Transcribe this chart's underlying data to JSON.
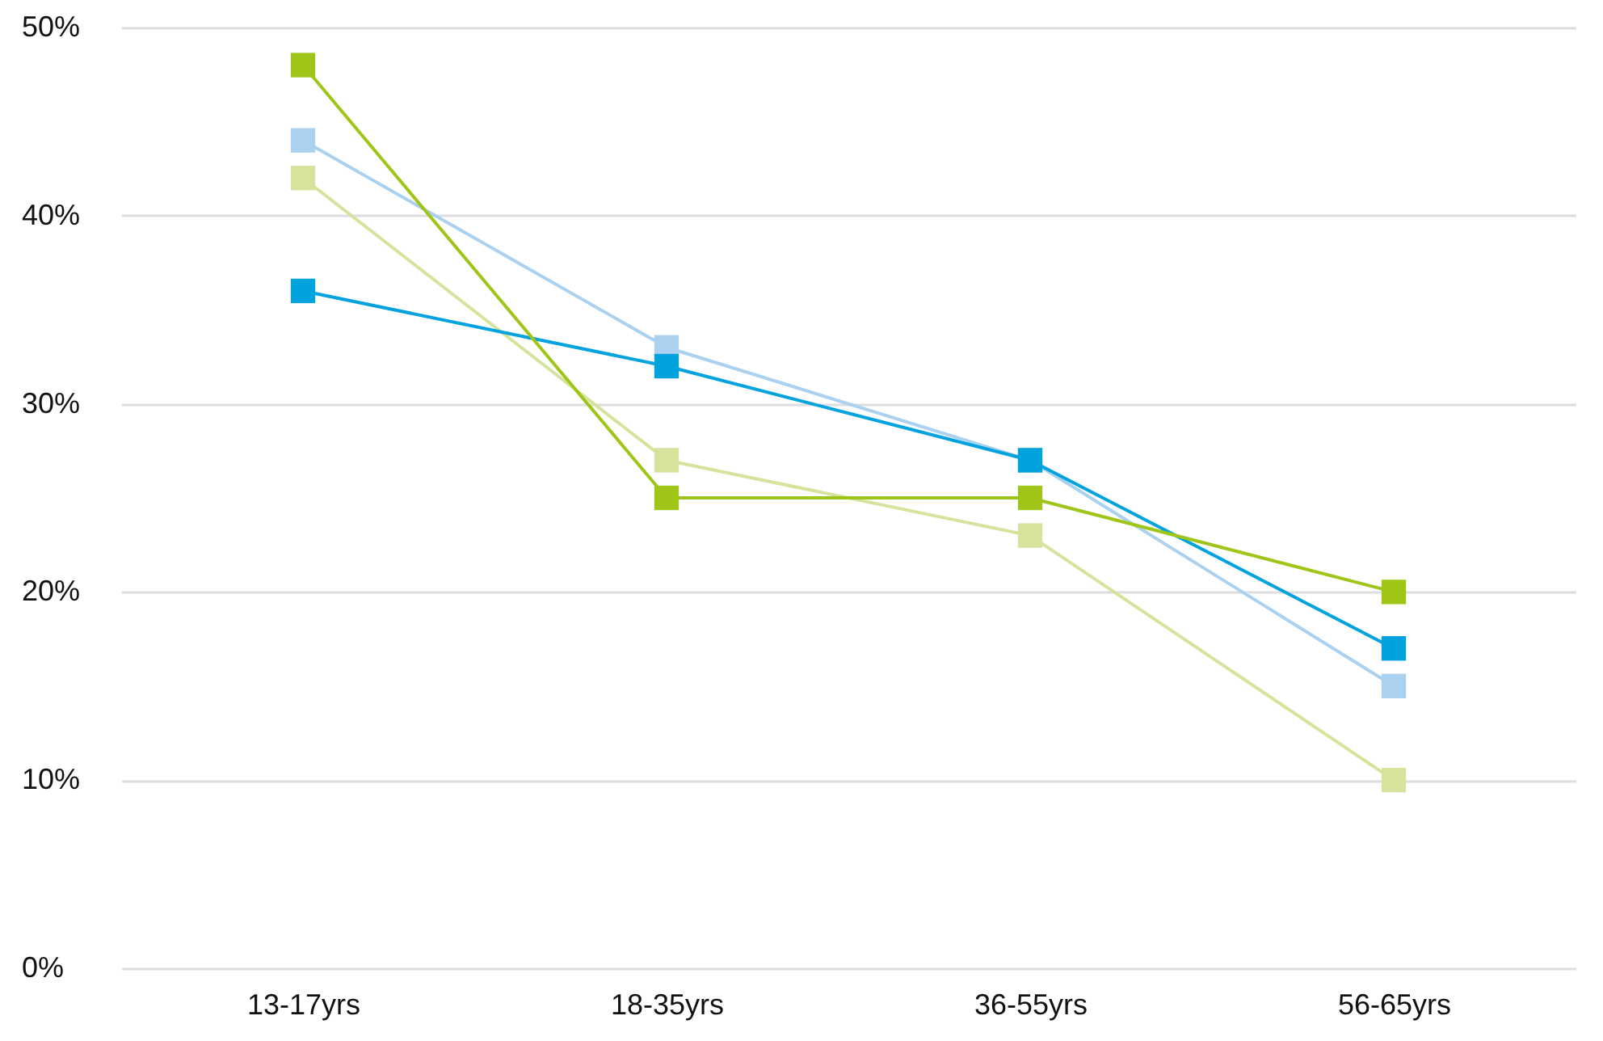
{
  "chart_data": {
    "type": "line",
    "categories": [
      "13-17yrs",
      "18-35yrs",
      "36-55yrs",
      "56-65yrs"
    ],
    "series": [
      {
        "color": "#d5e39d",
        "values": [
          42,
          27,
          23,
          10
        ]
      },
      {
        "color": "#aad1f0",
        "values": [
          44,
          33,
          27,
          15
        ]
      },
      {
        "color": "#00a3dd",
        "values": [
          36,
          32,
          27,
          17
        ]
      },
      {
        "color": "#a0c519",
        "values": [
          48,
          25,
          25,
          20
        ]
      }
    ],
    "ylim": [
      0,
      50
    ],
    "yticks": [
      {
        "value": 0,
        "label": "0%"
      },
      {
        "value": 10,
        "label": "10%"
      },
      {
        "value": 20,
        "label": "20%"
      },
      {
        "value": 30,
        "label": "30%"
      },
      {
        "value": 40,
        "label": "40%"
      },
      {
        "value": 50,
        "label": "50%"
      }
    ],
    "grid": "y",
    "marker": "square",
    "line_style": "solid"
  }
}
